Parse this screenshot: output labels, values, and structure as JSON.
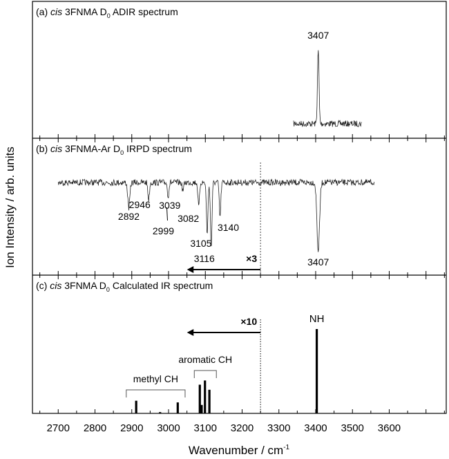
{
  "chart_data": {
    "type": "line",
    "xlabel": "Wavenumber / cm",
    "xlabel_sup": "-1",
    "ylabel": "Ion Intensity / arb. units",
    "xlim": [
      2630,
      3755
    ],
    "xticks": [
      2700,
      2800,
      2900,
      3000,
      3100,
      3200,
      3300,
      3400,
      3500,
      3600
    ],
    "panels": [
      {
        "id": "a",
        "title_prefix": "(a) ",
        "title_italic": "cis",
        "title_main": " 3FNMA  D",
        "title_sub": "0",
        "title_end": "  ADIR spectrum",
        "type": "line",
        "range": [
          3340,
          3525
        ],
        "peaks": [
          {
            "x": 3407,
            "depth": 1.0,
            "width": 3
          }
        ],
        "annotations": [
          {
            "text": "3407",
            "x": 3407
          }
        ]
      },
      {
        "id": "b",
        "title_prefix": "(b) ",
        "title_italic": "cis",
        "title_main": " 3FNMA-Ar  D",
        "title_sub": "0",
        "title_end": "  IRPD spectrum",
        "type": "line",
        "range": [
          2700,
          3560
        ],
        "peaks": [
          {
            "x": 2892,
            "depth": 0.37,
            "width": 4
          },
          {
            "x": 2946,
            "depth": 0.25,
            "width": 3
          },
          {
            "x": 2999,
            "depth": 0.2,
            "width": 3
          },
          {
            "x": 3039,
            "depth": 0.12,
            "width": 3
          },
          {
            "x": 3082,
            "depth": 0.36,
            "width": 3
          },
          {
            "x": 3105,
            "depth": 0.74,
            "width": 3
          },
          {
            "x": 3116,
            "depth": 0.94,
            "width": 3
          },
          {
            "x": 3140,
            "depth": 0.5,
            "width": 3
          },
          {
            "x": 3407,
            "depth": 1.0,
            "width": 5
          }
        ],
        "annotations": [
          {
            "text": "2892",
            "x": 2892
          },
          {
            "text": "2946",
            "x": 2946
          },
          {
            "text": "2999",
            "x": 2999
          },
          {
            "text": "3039",
            "x": 3039
          },
          {
            "text": "3082",
            "x": 3082
          },
          {
            "text": "3105",
            "x": 3105
          },
          {
            "text": "3116",
            "x": 3116
          },
          {
            "text": "3140",
            "x": 3140
          },
          {
            "text": "3407",
            "x": 3407
          }
        ],
        "scale_label": "×3",
        "scale_boundary": 3250
      },
      {
        "id": "c",
        "title_prefix": "(c) ",
        "title_italic": "cis",
        "title_main": " 3FNMA  D",
        "title_sub": "0",
        "title_end": "  Calculated IR spectrum",
        "type": "bar",
        "sticks": [
          {
            "x": 2912,
            "y": 15
          },
          {
            "x": 2977,
            "y": 1.5
          },
          {
            "x": 3025,
            "y": 13
          },
          {
            "x": 3085,
            "y": 34
          },
          {
            "x": 3090,
            "y": 10
          },
          {
            "x": 3099,
            "y": 39
          },
          {
            "x": 3111,
            "y": 28
          },
          {
            "x": 3403,
            "y": 100
          }
        ],
        "groups": [
          {
            "text": "methyl CH",
            "from": 2885,
            "to": 3045
          },
          {
            "text": "aromatic CH",
            "from": 3070,
            "to": 3130
          }
        ],
        "nh_label": "NH",
        "scale_label": "×10",
        "scale_boundary": 3250
      }
    ]
  }
}
